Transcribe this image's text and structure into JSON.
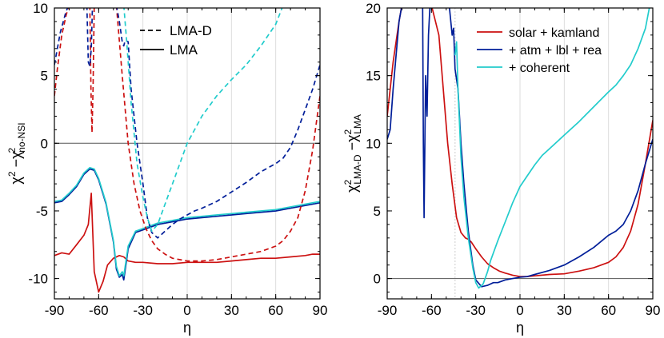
{
  "chart_data": [
    {
      "type": "line",
      "xlabel": "η",
      "ylabel_main": "χ",
      "ylabel_sup": "2",
      "ylabel_minus": " −χ",
      "ylabel_sup2": "2",
      "ylabel_sub2": "no-NSI",
      "xlim": [
        -90,
        90
      ],
      "ylim": [
        -11.5,
        10
      ],
      "xticks": [
        "-90",
        "-60",
        "-30",
        "0",
        "30",
        "60",
        "90"
      ],
      "yticks": [
        "-10",
        "-5",
        "0",
        "5",
        "10"
      ],
      "legend": [
        "LMA-D",
        "LMA"
      ],
      "series": [
        {
          "color": "#cc1111",
          "dash": false,
          "x": [
            -90,
            -85,
            -80,
            -75,
            -70,
            -67,
            -65,
            -63,
            -60,
            -57,
            -54,
            -50,
            -46,
            -43,
            -40,
            -35,
            -30,
            -20,
            -10,
            0,
            10,
            20,
            30,
            40,
            50,
            60,
            70,
            80,
            85,
            90
          ],
          "y": [
            -8.3,
            -8.1,
            -8.2,
            -7.5,
            -6.8,
            -6,
            -3.7,
            -9.5,
            -11,
            -10.2,
            -9,
            -8.5,
            -8.3,
            -8.4,
            -8.7,
            -8.8,
            -8.8,
            -8.9,
            -8.9,
            -8.8,
            -8.8,
            -8.8,
            -8.7,
            -8.6,
            -8.5,
            -8.5,
            -8.4,
            -8.3,
            -8.2,
            -8.2
          ]
        },
        {
          "color": "#001e99",
          "dash": false,
          "x": [
            -90,
            -85,
            -80,
            -75,
            -70,
            -66,
            -63,
            -60,
            -55,
            -50,
            -48,
            -46,
            -44,
            -43,
            -40,
            -35,
            -30,
            -25,
            -20,
            -10,
            0,
            10,
            20,
            30,
            40,
            50,
            60,
            70,
            80,
            90
          ],
          "y": [
            -4.4,
            -4.3,
            -3.8,
            -3.2,
            -2.3,
            -1.9,
            -2.0,
            -2.7,
            -4.5,
            -7.3,
            -9.3,
            -9.9,
            -9.7,
            -10.1,
            -7.8,
            -6.6,
            -6.4,
            -6.2,
            -6.0,
            -5.8,
            -5.6,
            -5.5,
            -5.4,
            -5.3,
            -5.2,
            -5.1,
            -5.0,
            -4.8,
            -4.6,
            -4.4
          ]
        },
        {
          "color": "#22cccc",
          "dash": false,
          "x": [
            -90,
            -85,
            -80,
            -75,
            -70,
            -66,
            -63,
            -60,
            -55,
            -50,
            -48,
            -46,
            -44,
            -43,
            -40,
            -35,
            -30,
            -25,
            -20,
            -10,
            0,
            10,
            20,
            30,
            40,
            50,
            60,
            70,
            80,
            90
          ],
          "y": [
            -4.3,
            -4.2,
            -3.7,
            -3.1,
            -2.2,
            -1.8,
            -1.9,
            -2.6,
            -4.4,
            -7.2,
            -9.1,
            -9.8,
            -9.5,
            -9.8,
            -7.6,
            -6.5,
            -6.3,
            -6.1,
            -5.9,
            -5.7,
            -5.5,
            -5.4,
            -5.3,
            -5.2,
            -5.1,
            -5.0,
            -4.9,
            -4.7,
            -4.5,
            -4.3
          ]
        },
        {
          "color": "#cc1111",
          "dash": true,
          "x": [
            -90,
            -88,
            -85,
            -82,
            -80
          ],
          "y": [
            3.5,
            5.5,
            8,
            9.5,
            10.2
          ]
        },
        {
          "color": "#cc1111",
          "dash": true,
          "x": [
            -66,
            -65.2,
            -64.5,
            -63.8,
            -63
          ],
          "y": [
            10.2,
            4,
            0.8,
            4,
            10.2
          ]
        },
        {
          "color": "#cc1111",
          "dash": true,
          "x": [
            -48,
            -44,
            -40,
            -36,
            -32,
            -28,
            -24,
            -20,
            -15,
            -10,
            0,
            10,
            20,
            30,
            40,
            50,
            60,
            65,
            70,
            75,
            80,
            85,
            90
          ],
          "y": [
            10.2,
            5,
            0,
            -3,
            -5,
            -6.3,
            -7.2,
            -7.8,
            -8.2,
            -8.5,
            -8.7,
            -8.7,
            -8.6,
            -8.4,
            -8.2,
            -8.0,
            -7.6,
            -7.2,
            -6.5,
            -5.5,
            -3.5,
            -0.5,
            3.5
          ]
        },
        {
          "color": "#001e99",
          "dash": true,
          "x": [
            -90,
            -86,
            -82,
            -80
          ],
          "y": [
            5.8,
            8.2,
            9.8,
            10.2
          ]
        },
        {
          "color": "#001e99",
          "dash": true,
          "x": [
            -68,
            -67,
            -66,
            -65,
            -64.2
          ],
          "y": [
            10.2,
            6,
            5.7,
            7,
            10.2
          ]
        },
        {
          "color": "#001e99",
          "dash": true,
          "x": [
            -48,
            -46,
            -44,
            -43,
            -42,
            -40,
            -38,
            -34,
            -30,
            -27,
            -24,
            -20,
            -15,
            -10,
            -5,
            0,
            5,
            10,
            20,
            30,
            40,
            50,
            60,
            65,
            70,
            75,
            80,
            85,
            90
          ],
          "y": [
            10.2,
            9,
            7.5,
            7.2,
            7.6,
            7.5,
            4,
            0,
            -3,
            -5.5,
            -6.6,
            -7.0,
            -6.5,
            -6.0,
            -5.6,
            -5.3,
            -5.0,
            -4.8,
            -4.3,
            -3.6,
            -2.9,
            -2.1,
            -1.5,
            -1.1,
            -0.3,
            1,
            2.5,
            4,
            5.8
          ]
        },
        {
          "color": "#22cccc",
          "dash": true,
          "x": [
            -43,
            -41,
            -38,
            -34,
            -30,
            -27,
            -24,
            -20,
            -15,
            -10,
            -5,
            0,
            5,
            10,
            20,
            30,
            40,
            50,
            60,
            65
          ],
          "y": [
            10.2,
            7.5,
            3,
            -1.5,
            -4,
            -5.5,
            -6.5,
            -6.0,
            -4.5,
            -3.0,
            -1.5,
            0,
            1,
            2,
            3.5,
            4.7,
            5.8,
            7.2,
            8.8,
            10.2
          ]
        }
      ]
    },
    {
      "type": "line",
      "xlabel": "η",
      "ylabel_chi": "χ",
      "ylabel_sup": "2",
      "ylabel_sub": "LMA-D",
      "ylabel_minus": " −χ",
      "ylabel_sup2": "2",
      "ylabel_sub2": "LMA",
      "xlim": [
        -90,
        90
      ],
      "ylim": [
        -1.5,
        20
      ],
      "xticks": [
        "-90",
        "-60",
        "-30",
        "0",
        "30",
        "60",
        "90"
      ],
      "yticks": [
        "0",
        "5",
        "10",
        "15",
        "20"
      ],
      "legend": [
        "solar + kamland",
        "+ atm + lbl + rea",
        "+ coherent"
      ],
      "series": [
        {
          "color": "#cc1111",
          "dash": false,
          "x": [
            -90,
            -88,
            -86,
            -84,
            -82,
            -80,
            -60,
            -55,
            -52,
            -49,
            -46,
            -43,
            -40,
            -37,
            -35,
            -33,
            -30,
            -26,
            -22,
            -18,
            -14,
            -10,
            -5,
            0,
            5,
            10,
            20,
            30,
            40,
            50,
            60,
            65,
            70,
            75,
            80,
            85,
            90
          ],
          "y": [
            12,
            14,
            16,
            17.5,
            19,
            20.2,
            20.2,
            18,
            14,
            10,
            7,
            4.5,
            3.4,
            3.0,
            2.9,
            2.7,
            2.2,
            1.6,
            1.1,
            0.8,
            0.55,
            0.4,
            0.25,
            0.15,
            0.15,
            0.2,
            0.3,
            0.35,
            0.55,
            0.8,
            1.2,
            1.6,
            2.3,
            3.5,
            5.5,
            8.5,
            11.7
          ]
        },
        {
          "color": "#001e99",
          "dash": false,
          "x": [
            -90,
            -88,
            -86,
            -84,
            -82,
            -80,
            -70,
            -66,
            -65.5,
            -65,
            -64,
            -63,
            -62,
            -61,
            -60,
            -58,
            -55,
            -52,
            -50,
            -48,
            -46,
            -45,
            -44,
            -42,
            -40,
            -38,
            -35,
            -32,
            -30,
            -26,
            -22,
            -18,
            -15,
            -10,
            -5,
            0,
            5,
            10,
            20,
            30,
            40,
            50,
            60,
            65,
            70,
            75,
            80,
            85,
            90
          ],
          "y": [
            10.3,
            11,
            14,
            16.5,
            19,
            20.2,
            20.2,
            20.2,
            10,
            4.5,
            15,
            12,
            18,
            20.2,
            20.2,
            20.2,
            20.2,
            20.2,
            20.2,
            20.2,
            18,
            18.5,
            15.5,
            14,
            10,
            7,
            3.5,
            1,
            -0.1,
            -0.6,
            -0.5,
            -0.3,
            -0.3,
            -0.1,
            0,
            0.1,
            0.15,
            0.3,
            0.6,
            1.0,
            1.6,
            2.3,
            3.2,
            3.5,
            4,
            5,
            6.5,
            8.5,
            10.3
          ]
        },
        {
          "color": "#22cccc",
          "dash": false,
          "x": [
            -44,
            -43,
            -42,
            -40,
            -38,
            -35,
            -32,
            -30,
            -28,
            -25,
            -22,
            -20,
            -15,
            -10,
            -5,
            0,
            5,
            10,
            15,
            20,
            30,
            40,
            50,
            60,
            65,
            70,
            75,
            80,
            85,
            88
          ],
          "y": [
            16.5,
            17.5,
            14,
            9,
            6,
            3,
            0.8,
            -0.3,
            -0.7,
            -0.4,
            0.5,
            1.3,
            2.8,
            4.2,
            5.6,
            6.8,
            7.6,
            8.4,
            9.1,
            9.6,
            10.6,
            11.6,
            12.7,
            13.8,
            14.3,
            15.0,
            15.8,
            17.0,
            18.5,
            20.2
          ]
        }
      ]
    }
  ]
}
